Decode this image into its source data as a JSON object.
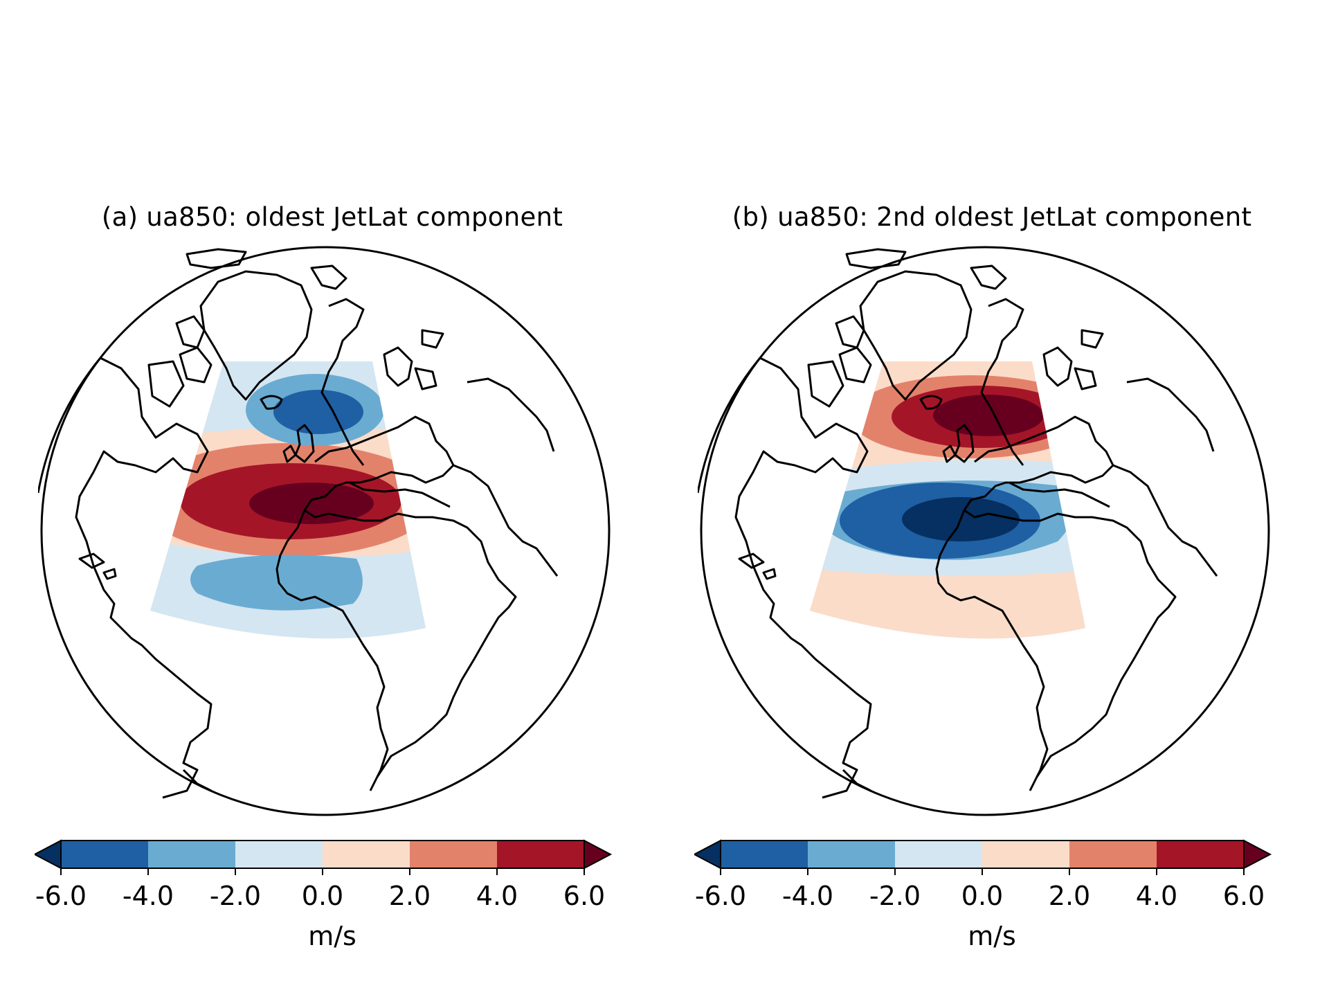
{
  "panels": [
    {
      "title": "(a) ua850: oldest JetLat component",
      "pattern": "positive dipole: negative anomaly near Iceland, strong positive anomaly over mid-latitude North Atlantic jet, weak negative anomaly in subtropics"
    },
    {
      "title": "(b) ua850: 2nd oldest JetLat component",
      "pattern": "positive anomaly near Iceland / northern Atlantic, strong negative anomaly over central North Atlantic, weak positive anomaly in subtropics"
    }
  ],
  "colorbar": {
    "ticks": [
      "-6.0",
      "-4.0",
      "-2.0",
      "0.0",
      "2.0",
      "4.0",
      "6.0"
    ],
    "units": "m/s",
    "extend": "both",
    "colors": [
      "#053061",
      "#1f5fa3",
      "#6aabd2",
      "#d4e6f1",
      "#fbdcc9",
      "#e3826b",
      "#a51528",
      "#67001f"
    ]
  }
}
